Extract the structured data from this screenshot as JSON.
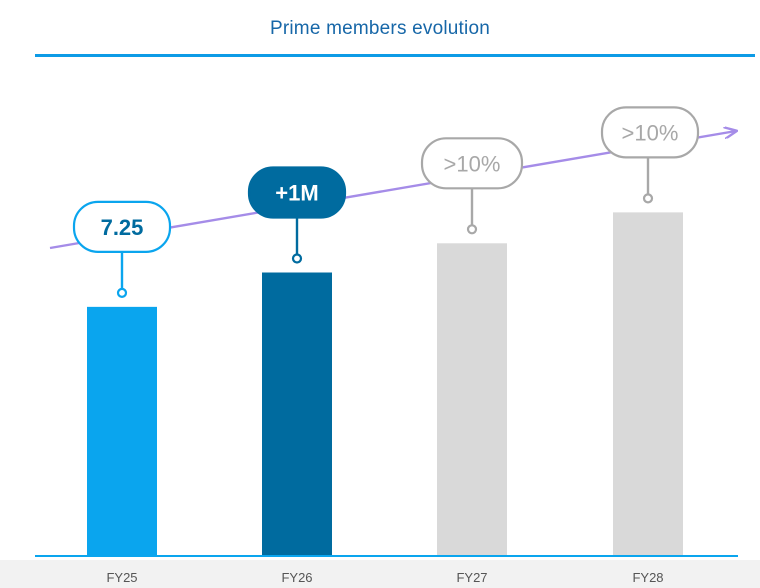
{
  "title": "Prime members evolution",
  "chart_data": {
    "type": "bar",
    "categories": [
      "FY25",
      "FY26",
      "FY27",
      "FY28"
    ],
    "values": [
      7.25,
      8.25,
      9.1,
      10.0
    ],
    "ylim": [
      0,
      11
    ],
    "annotations": [
      "7.25",
      "+1M",
      ">10%",
      ">10%"
    ],
    "bar_colors": [
      "#0aa5ee",
      "#006b9f",
      "#d9d9d9",
      "#d9d9d9"
    ],
    "callout_styles": [
      "outline-blue",
      "filled-dark",
      "outline-gray",
      "outline-gray"
    ],
    "trend_arrow_color": "#a58ce8",
    "axis_color": "#0aa5ee",
    "tick_label_color": "#555555"
  }
}
